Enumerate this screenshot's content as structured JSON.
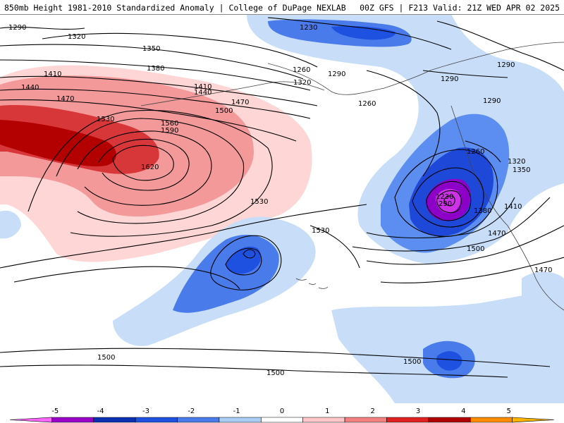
{
  "header": {
    "title_left": "850mb Height 1981-2010 Standardized Anomaly | College of DuPage NEXLAB",
    "title_right": "00Z GFS | F213 Valid: 21Z WED APR 02 2025"
  },
  "contour_labels": [
    "1290",
    "1320",
    "1350",
    "1380",
    "1410",
    "1440",
    "1470",
    "1530",
    "1560",
    "1590",
    "1620",
    "1500",
    "1410",
    "1440",
    "1470",
    "1230",
    "1260",
    "1290",
    "1320",
    "1290",
    "1260",
    "1290",
    "1290",
    "1260",
    "1320",
    "1350",
    "1230",
    "290",
    "1380",
    "1410",
    "1470",
    "1500",
    "1530",
    "1530",
    "1500",
    "1500",
    "1500",
    "1470"
  ],
  "colorbar": {
    "ticks": [
      "-5",
      "-4",
      "-3",
      "-2",
      "-1",
      "0",
      "1",
      "2",
      "3",
      "4",
      "5"
    ],
    "colors": [
      "#ff66ff",
      "#9a00c8",
      "#0a2fb0",
      "#1f51e0",
      "#4a7bea",
      "#a9cdf5",
      "#ffffff",
      "#ffc7c7",
      "#f28080",
      "#e12020",
      "#b00000",
      "#ff8c00",
      "#ffb400"
    ]
  }
}
